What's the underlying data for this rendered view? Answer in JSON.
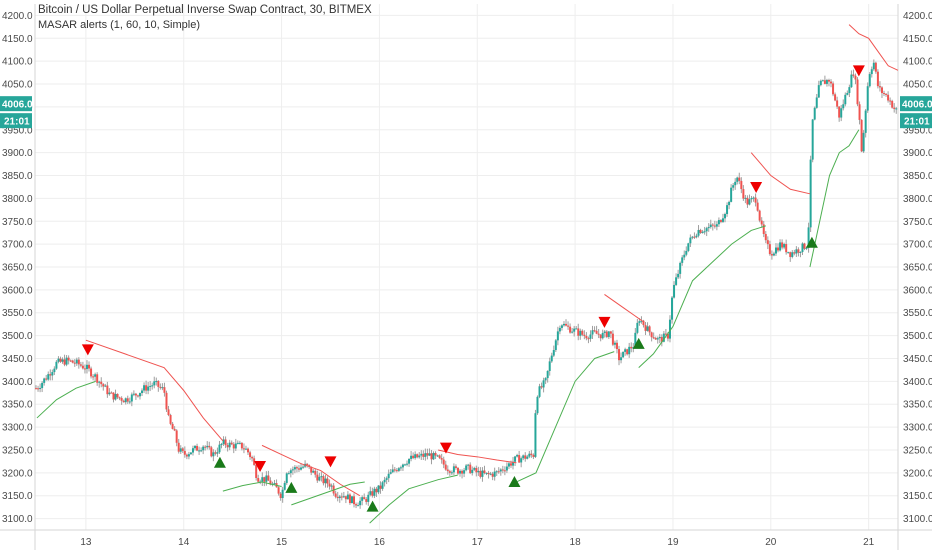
{
  "header": {
    "title": "Bitcoin / US Dollar Perpetual Inverse Swap Contract, 30, BITMEX",
    "indicator": "MASAR alerts (1, 60, 10, Simple)"
  },
  "price_badge": {
    "value": "4006.0",
    "time": "21:01",
    "color": "#26a69a"
  },
  "colors": {
    "up": "#26a69a",
    "down": "#ef5350",
    "wick": "#9e9e9e",
    "upper_band": "#ef5350",
    "lower_band": "#4caf50",
    "sell_marker": "#ee0000",
    "buy_marker": "#1a7a1a",
    "grid": "#eeeeee"
  },
  "chart_data": {
    "type": "candlestick",
    "x_tick_labels": [
      "13",
      "14",
      "15",
      "16",
      "17",
      "18",
      "19",
      "20",
      "21"
    ],
    "x_ticks": [
      13,
      14,
      15,
      16,
      17,
      18,
      19,
      20,
      21
    ],
    "xlim": [
      12.48,
      21.3
    ],
    "y_ticks": [
      3100,
      3150,
      3200,
      3250,
      3300,
      3350,
      3400,
      3450,
      3500,
      3550,
      3600,
      3650,
      3700,
      3750,
      3800,
      3850,
      3900,
      3950,
      4000,
      4050,
      4100,
      4150,
      4200
    ],
    "y_tick_labels": [
      "3100.0",
      "3150.0",
      "3200.0",
      "3250.0",
      "3300.0",
      "3350.0",
      "3400.0",
      "3450.0",
      "3500.0",
      "3550.0",
      "3600.0",
      "3650.0",
      "3700.0",
      "3750.0",
      "3800.0",
      "3850.0",
      "3900.0",
      "3950.0",
      "4000.0",
      "4050.0",
      "4100.0",
      "4150.0",
      "4200.0"
    ],
    "ylim": [
      3075,
      4225
    ],
    "grid": true,
    "last_price": 4006,
    "close_path": [
      [
        12.5,
        3385
      ],
      [
        12.6,
        3410
      ],
      [
        12.7,
        3440
      ],
      [
        12.8,
        3445
      ],
      [
        12.9,
        3440
      ],
      [
        13.0,
        3430
      ],
      [
        13.1,
        3410
      ],
      [
        13.25,
        3370
      ],
      [
        13.4,
        3360
      ],
      [
        13.5,
        3370
      ],
      [
        13.6,
        3385
      ],
      [
        13.7,
        3395
      ],
      [
        13.8,
        3380
      ],
      [
        13.85,
        3310
      ],
      [
        13.9,
        3290
      ],
      [
        13.95,
        3250
      ],
      [
        14.0,
        3240
      ],
      [
        14.1,
        3250
      ],
      [
        14.2,
        3260
      ],
      [
        14.3,
        3240
      ],
      [
        14.4,
        3265
      ],
      [
        14.5,
        3260
      ],
      [
        14.6,
        3258
      ],
      [
        14.65,
        3248
      ],
      [
        14.7,
        3230
      ],
      [
        14.75,
        3190
      ],
      [
        14.85,
        3185
      ],
      [
        14.95,
        3165
      ],
      [
        15.0,
        3150
      ],
      [
        15.05,
        3205
      ],
      [
        15.15,
        3210
      ],
      [
        15.25,
        3215
      ],
      [
        15.3,
        3205
      ],
      [
        15.4,
        3185
      ],
      [
        15.5,
        3175
      ],
      [
        15.55,
        3155
      ],
      [
        15.65,
        3150
      ],
      [
        15.75,
        3135
      ],
      [
        15.85,
        3140
      ],
      [
        15.95,
        3160
      ],
      [
        16.0,
        3165
      ],
      [
        16.1,
        3195
      ],
      [
        16.2,
        3215
      ],
      [
        16.3,
        3230
      ],
      [
        16.4,
        3235
      ],
      [
        16.5,
        3240
      ],
      [
        16.6,
        3230
      ],
      [
        16.7,
        3210
      ],
      [
        16.8,
        3205
      ],
      [
        16.9,
        3210
      ],
      [
        17.0,
        3200
      ],
      [
        17.1,
        3195
      ],
      [
        17.2,
        3200
      ],
      [
        17.3,
        3215
      ],
      [
        17.4,
        3230
      ],
      [
        17.5,
        3235
      ],
      [
        17.58,
        3240
      ],
      [
        17.6,
        3370
      ],
      [
        17.7,
        3400
      ],
      [
        17.75,
        3450
      ],
      [
        17.85,
        3530
      ],
      [
        17.9,
        3520
      ],
      [
        18.0,
        3510
      ],
      [
        18.1,
        3500
      ],
      [
        18.2,
        3505
      ],
      [
        18.3,
        3500
      ],
      [
        18.35,
        3510
      ],
      [
        18.45,
        3450
      ],
      [
        18.55,
        3470
      ],
      [
        18.6,
        3480
      ],
      [
        18.65,
        3540
      ],
      [
        18.75,
        3510
      ],
      [
        18.85,
        3490
      ],
      [
        18.95,
        3500
      ],
      [
        19.0,
        3600
      ],
      [
        19.1,
        3670
      ],
      [
        19.15,
        3700
      ],
      [
        19.25,
        3730
      ],
      [
        19.35,
        3735
      ],
      [
        19.45,
        3740
      ],
      [
        19.55,
        3780
      ],
      [
        19.6,
        3820
      ],
      [
        19.65,
        3850
      ],
      [
        19.75,
        3790
      ],
      [
        19.85,
        3800
      ],
      [
        19.9,
        3740
      ],
      [
        19.95,
        3700
      ],
      [
        20.0,
        3680
      ],
      [
        20.1,
        3700
      ],
      [
        20.2,
        3680
      ],
      [
        20.3,
        3690
      ],
      [
        20.38,
        3700
      ],
      [
        20.42,
        3960
      ],
      [
        20.5,
        4050
      ],
      [
        20.6,
        4060
      ],
      [
        20.7,
        3980
      ],
      [
        20.8,
        4050
      ],
      [
        20.85,
        4080
      ],
      [
        20.9,
        3990
      ],
      [
        20.93,
        3900
      ],
      [
        21.0,
        4070
      ],
      [
        21.05,
        4100
      ],
      [
        21.1,
        4040
      ],
      [
        21.2,
        4020
      ],
      [
        21.28,
        3990
      ],
      [
        21.3,
        4006
      ]
    ],
    "series": [
      {
        "name": "MASAR upper",
        "segments": [
          [
            [
              13.0,
              3490
            ],
            [
              13.4,
              3460
            ],
            [
              13.8,
              3430
            ],
            [
              14.0,
              3380
            ],
            [
              14.2,
              3320
            ],
            [
              14.4,
              3270
            ]
          ],
          [
            [
              14.8,
              3260
            ],
            [
              15.0,
              3240
            ],
            [
              15.2,
              3220
            ],
            [
              15.4,
              3205
            ],
            [
              15.6,
              3175
            ],
            [
              15.8,
              3150
            ]
          ],
          [
            [
              16.6,
              3250
            ],
            [
              16.8,
              3240
            ],
            [
              17.0,
              3235
            ],
            [
              17.2,
              3228
            ],
            [
              17.4,
              3222
            ]
          ],
          [
            [
              18.3,
              3590
            ],
            [
              18.5,
              3560
            ],
            [
              18.7,
              3530
            ]
          ],
          [
            [
              19.8,
              3900
            ],
            [
              20.0,
              3850
            ],
            [
              20.2,
              3820
            ],
            [
              20.4,
              3810
            ]
          ],
          [
            [
              20.8,
              4180
            ],
            [
              20.9,
              4160
            ],
            [
              21.0,
              4150
            ],
            [
              21.1,
              4120
            ],
            [
              21.2,
              4090
            ],
            [
              21.3,
              4080
            ]
          ]
        ]
      },
      {
        "name": "MASAR lower",
        "segments": [
          [
            [
              12.5,
              3320
            ],
            [
              12.7,
              3360
            ],
            [
              12.9,
              3385
            ],
            [
              13.1,
              3400
            ]
          ],
          [
            [
              14.4,
              3160
            ],
            [
              14.6,
              3172
            ],
            [
              14.8,
              3180
            ],
            [
              15.0,
              3170
            ]
          ],
          [
            [
              15.1,
              3130
            ],
            [
              15.3,
              3145
            ],
            [
              15.5,
              3160
            ],
            [
              15.7,
              3175
            ],
            [
              15.85,
              3180
            ]
          ],
          [
            [
              15.9,
              3090
            ],
            [
              16.1,
              3130
            ],
            [
              16.3,
              3165
            ],
            [
              16.6,
              3185
            ],
            [
              16.8,
              3195
            ]
          ],
          [
            [
              17.4,
              3180
            ],
            [
              17.6,
              3200
            ],
            [
              17.8,
              3300
            ],
            [
              18.0,
              3400
            ],
            [
              18.2,
              3450
            ],
            [
              18.4,
              3465
            ]
          ],
          [
            [
              18.65,
              3430
            ],
            [
              18.8,
              3460
            ],
            [
              19.0,
              3520
            ],
            [
              19.2,
              3620
            ],
            [
              19.4,
              3660
            ],
            [
              19.6,
              3700
            ],
            [
              19.8,
              3730
            ],
            [
              19.95,
              3740
            ]
          ],
          [
            [
              20.4,
              3650
            ],
            [
              20.5,
              3750
            ],
            [
              20.6,
              3850
            ],
            [
              20.7,
              3900
            ],
            [
              20.8,
              3915
            ],
            [
              20.9,
              3950
            ]
          ]
        ]
      }
    ],
    "sell_signals": [
      [
        13.02,
        3470
      ],
      [
        14.78,
        3215
      ],
      [
        15.5,
        3225
      ],
      [
        16.68,
        3255
      ],
      [
        18.3,
        3530
      ],
      [
        19.85,
        3825
      ],
      [
        20.9,
        4080
      ]
    ],
    "buy_signals": [
      [
        14.37,
        3222
      ],
      [
        15.1,
        3167
      ],
      [
        15.93,
        3126
      ],
      [
        17.38,
        3180
      ],
      [
        18.65,
        3482
      ],
      [
        20.42,
        3703
      ]
    ]
  }
}
